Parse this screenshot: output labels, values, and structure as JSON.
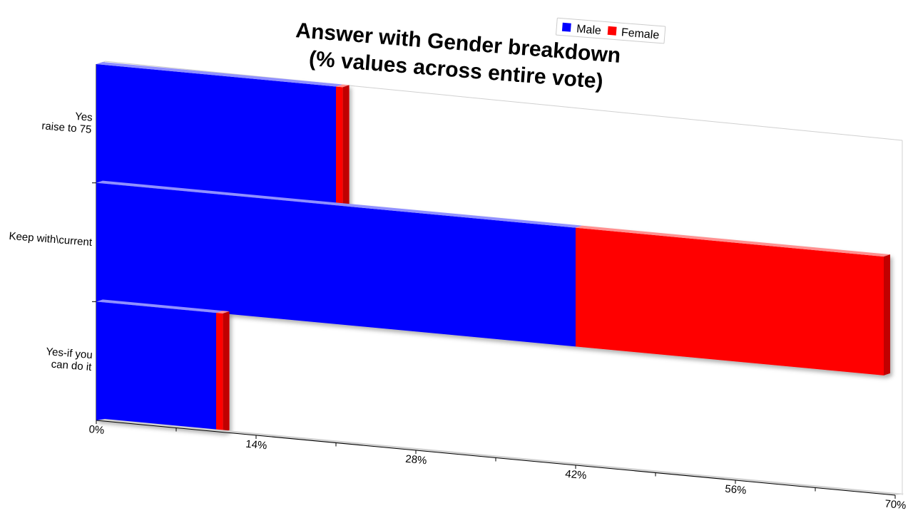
{
  "chart_data": {
    "type": "bar",
    "orientation": "horizontal",
    "stacked": true,
    "style": "3d",
    "title": "Answer with Gender breakdown\n(% values across entire vote)",
    "categories": [
      "Yes\nraise to 75",
      "Keep with\\current",
      "Yes-if you\ncan do it"
    ],
    "series": [
      {
        "name": "Male",
        "color": "#0000ff",
        "values": [
          21,
          42,
          10.5
        ]
      },
      {
        "name": "Female",
        "color": "#ff0000",
        "values": [
          0.6,
          27,
          0.6
        ]
      }
    ],
    "xlim": [
      0,
      70
    ],
    "xticks": [
      "0%",
      "14%",
      "28%",
      "42%",
      "56%",
      "70%"
    ],
    "legend_position": "top-right",
    "grid": false
  }
}
